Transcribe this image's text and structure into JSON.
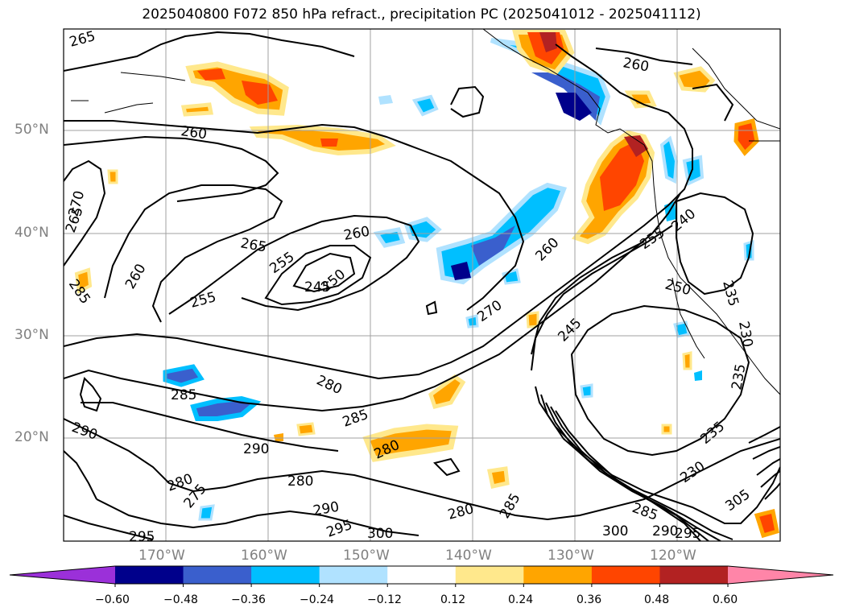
{
  "title": "2025040800 F072 850 hPa refract., precipitation PC (2025041012 - 2025041112)",
  "longitude_labels": [
    "170°W",
    "160°W",
    "150°W",
    "140°W",
    "130°W",
    "120°W"
  ],
  "latitude_labels": [
    "50°N",
    "40°N",
    "30°N",
    "20°N"
  ],
  "contour_labels": [
    "265",
    "260",
    "260",
    "265",
    "270",
    "285",
    "260",
    "255",
    "265",
    "255",
    "245",
    "250",
    "260",
    "260",
    "270",
    "245",
    "280",
    "285",
    "290",
    "290",
    "280",
    "285",
    "280",
    "275",
    "290",
    "295",
    "295",
    "300",
    "280",
    "285",
    "280",
    "285",
    "300",
    "295",
    "290",
    "305",
    "235",
    "230",
    "235",
    "230",
    "240",
    "255",
    "250",
    "235"
  ],
  "colorbar": {
    "tick_labels": [
      "−0.60",
      "−0.48",
      "−0.36",
      "−0.24",
      "−0.12",
      "0.12",
      "0.24",
      "0.36",
      "0.48",
      "0.60"
    ],
    "colors": [
      "#9b30d9",
      "#00008b",
      "#3a5fcd",
      "#00bfff",
      "#b0e2ff",
      "#ffffff",
      "#ffe88c",
      "#ffa500",
      "#ff4500",
      "#b22222",
      "#ff85a8"
    ]
  }
}
